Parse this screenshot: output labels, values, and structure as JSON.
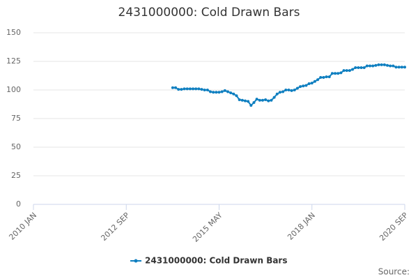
{
  "chart_data": {
    "type": "line",
    "title": "2431000000: Cold Drawn Bars",
    "x": [
      "2014 JAN",
      "2014 FEB",
      "2014 MAR",
      "2014 APR",
      "2014 MAY",
      "2014 JUN",
      "2014 JUL",
      "2014 AUG",
      "2014 SEP",
      "2014 OCT",
      "2014 NOV",
      "2014 DEC",
      "2015 JAN",
      "2015 FEB",
      "2015 MAR",
      "2015 APR",
      "2015 MAY",
      "2015 JUN",
      "2015 JUL",
      "2015 AUG",
      "2015 SEP",
      "2015 OCT",
      "2015 NOV",
      "2015 DEC",
      "2016 JAN",
      "2016 FEB",
      "2016 MAR",
      "2016 APR",
      "2016 MAY",
      "2016 JUN",
      "2016 JUL",
      "2016 AUG",
      "2016 SEP",
      "2016 OCT",
      "2016 NOV",
      "2016 DEC",
      "2017 JAN",
      "2017 FEB",
      "2017 MAR",
      "2017 APR",
      "2017 MAY",
      "2017 JUN",
      "2017 JUL",
      "2017 AUG",
      "2017 SEP",
      "2017 OCT",
      "2017 NOV",
      "2017 DEC",
      "2018 JAN",
      "2018 FEB",
      "2018 MAR",
      "2018 APR",
      "2018 MAY",
      "2018 JUN",
      "2018 JUL",
      "2018 AUG",
      "2018 SEP",
      "2018 OCT",
      "2018 NOV",
      "2018 DEC",
      "2019 JAN",
      "2019 FEB",
      "2019 MAR",
      "2019 APR",
      "2019 MAY",
      "2019 JUN",
      "2019 JUL",
      "2019 AUG",
      "2019 SEP",
      "2019 OCT",
      "2019 NOV",
      "2019 DEC",
      "2020 JAN",
      "2020 FEB",
      "2020 MAR",
      "2020 APR",
      "2020 MAY",
      "2020 JUN",
      "2020 JUL",
      "2020 AUG",
      "2020 SEP"
    ],
    "series": [
      {
        "name": "2431000000: Cold Drawn Bars",
        "color": "#0f7fc0",
        "values": [
          102,
          102,
          100.5,
          100.5,
          101,
          101,
          101,
          101,
          101,
          101,
          100.5,
          100,
          100,
          98.5,
          98,
          98,
          98,
          98.5,
          99.5,
          98.5,
          97.5,
          96.5,
          95,
          91.5,
          91,
          90.5,
          90,
          86.5,
          89,
          92,
          91,
          91,
          91.5,
          90.5,
          91,
          93.5,
          96.5,
          98,
          98.5,
          100,
          100,
          99.5,
          100,
          101.5,
          103,
          103.5,
          104,
          105.5,
          106,
          107.5,
          109,
          111,
          111,
          111.5,
          111.5,
          114.5,
          114.5,
          114.5,
          115,
          117,
          117,
          117,
          118,
          119.5,
          119.5,
          119.5,
          119.5,
          121,
          121,
          121,
          121.5,
          122,
          122,
          122,
          121.5,
          121,
          121,
          120,
          120,
          120,
          120
        ]
      }
    ],
    "xlim": [
      "2010 JAN",
      "2020 SEP"
    ],
    "xticks": [
      "2010 JAN",
      "2012 SEP",
      "2015 MAY",
      "2018 JAN",
      "2020 SEP"
    ],
    "ylim": [
      0,
      150
    ],
    "yticks": [
      0,
      25,
      50,
      75,
      100,
      125,
      150
    ],
    "grid": true,
    "source": "Source:"
  }
}
